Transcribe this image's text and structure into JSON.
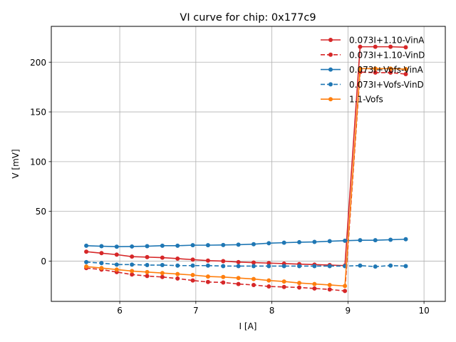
{
  "chart_data": {
    "type": "line",
    "title": "VI curve for chip: 0x177c9",
    "xlabel": "I [A]",
    "ylabel": "V [mV]",
    "xlim": [
      5.1,
      10.28
    ],
    "ylim": [
      -40.5,
      236
    ],
    "xticks": [
      6,
      7,
      8,
      9,
      10
    ],
    "xtick_labels": [
      "6",
      "7",
      "8",
      "9",
      "10"
    ],
    "yticks": [
      0,
      50,
      100,
      150,
      200
    ],
    "ytick_labels": [
      "0",
      "50",
      "100",
      "150",
      "200"
    ],
    "grid": true,
    "legend_position": "top-right",
    "x": [
      5.56,
      5.76,
      5.96,
      6.16,
      6.36,
      6.56,
      6.76,
      6.96,
      7.16,
      7.36,
      7.56,
      7.76,
      7.96,
      8.16,
      8.36,
      8.56,
      8.76,
      8.96,
      9.16,
      9.36,
      9.56,
      9.76
    ],
    "series": [
      {
        "name": "0.073I+1.10-VinA",
        "color": "#d62728",
        "linestyle": "solid",
        "values": [
          9.5,
          8,
          6.5,
          4.5,
          4,
          3.5,
          2.5,
          1.5,
          0.5,
          0,
          -1,
          -1.5,
          -2,
          -2.5,
          -3,
          -3.5,
          -4,
          -4.5,
          215.5,
          215.5,
          215.5,
          215
        ]
      },
      {
        "name": "0.073I+1.10-VinD",
        "color": "#d62728",
        "linestyle": "dashed",
        "values": [
          -7,
          -8.5,
          -11,
          -13.5,
          -15,
          -16,
          -17.5,
          -19.5,
          -21,
          -21.5,
          -23,
          -24,
          -25.5,
          -26,
          -26.5,
          -27.5,
          -28.5,
          -30,
          190,
          189.5,
          189.5,
          188
        ]
      },
      {
        "name": "0.073I+Vofs-VinA",
        "color": "#1f77b4",
        "linestyle": "solid",
        "values": [
          15.5,
          15,
          14.5,
          14.7,
          15,
          15.5,
          15.5,
          16,
          16,
          16.2,
          16.5,
          17,
          18,
          18.5,
          19,
          19.3,
          20,
          20.5,
          21,
          21,
          21.5,
          22
        ]
      },
      {
        "name": "0.073I+Vofs-VinD",
        "color": "#1f77b4",
        "linestyle": "dashed",
        "values": [
          -1,
          -2,
          -3.5,
          -3.5,
          -4,
          -4,
          -4.5,
          -4.5,
          -4.5,
          -5,
          -5,
          -5,
          -5,
          -5,
          -5,
          -5,
          -5,
          -5,
          -4.5,
          -5.5,
          -4.5,
          -5
        ]
      },
      {
        "name": "1.1-Vofs",
        "color": "#ff7f0e",
        "linestyle": "solid",
        "values": [
          -5.5,
          -7,
          -8.5,
          -10,
          -11,
          -12,
          -13,
          -14,
          -15.5,
          -16,
          -17,
          -18,
          -19.5,
          -20.5,
          -22,
          -23,
          -24,
          -25,
          193.5,
          193.5,
          193.5,
          193
        ]
      }
    ]
  }
}
